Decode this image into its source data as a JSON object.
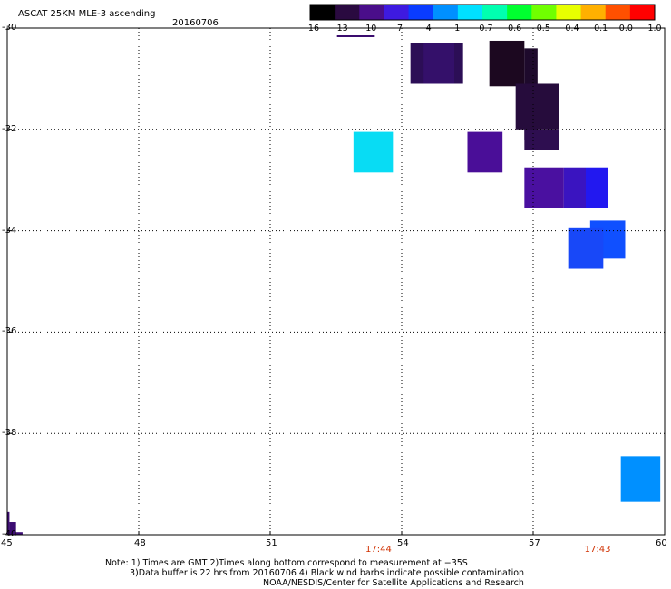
{
  "header": {
    "title": "ASCAT 25KM MLE-3 ascending",
    "date": "20160706"
  },
  "colorbar": {
    "labels": [
      "-16",
      "-13",
      "-10",
      "-7",
      "-4",
      "-1",
      "-0.7",
      "-0.6",
      "-0.5",
      "-0.4",
      "-0.1",
      "0.0",
      "1.0"
    ],
    "colors": [
      "#000000",
      "#2a0a40",
      "#4a0e8a",
      "#3e1ae0",
      "#0a3cff",
      "#0090ff",
      "#00e0ff",
      "#00ffb0",
      "#00ff30",
      "#70ff00",
      "#e8ff00",
      "#ffb000",
      "#ff5000",
      "#ff0000"
    ]
  },
  "notes": {
    "line1": "Note: 1) Times are GMT 2)Times along bottom correspond to measurement at −35S",
    "line2": "3)Data buffer is 22 hrs from 20160706 4) Black wind barbs indicate possible contamination",
    "line3": "NOAA/NESDIS/Center for Satellite Applications and Research"
  },
  "chart_data": {
    "type": "heatmap",
    "title": "ASCAT 25KM MLE-3 ascending",
    "subtitle": "20160706",
    "xlim": [
      45,
      60
    ],
    "ylim": [
      -40,
      -30
    ],
    "x_ticks": [
      45,
      48,
      51,
      54,
      57,
      60
    ],
    "y_ticks": [
      -30,
      -32,
      -34,
      -36,
      -38,
      -40
    ],
    "x_tick_labels": [
      "45",
      "48",
      "51",
      "54",
      "57",
      "60"
    ],
    "y_tick_labels": [
      "-30",
      "-32",
      "-34",
      "-36",
      "-38",
      "-40"
    ],
    "grid": true,
    "times": [
      {
        "lon": 54.0,
        "label": "17:44"
      },
      {
        "lon": 59.0,
        "label": "17:43"
      }
    ],
    "cells": [
      {
        "lon": [
          54.2,
          55.4
        ],
        "lat": [
          -30.3,
          -31.1
        ],
        "color": "#2c0e56"
      },
      {
        "lon": [
          54.5,
          55.2
        ],
        "lat": [
          -30.3,
          -31.1
        ],
        "color": "#34106a"
      },
      {
        "lon": [
          56.0,
          56.8
        ],
        "lat": [
          -30.25,
          -31.15
        ],
        "color": "#1c0820"
      },
      {
        "lon": [
          56.8,
          57.1
        ],
        "lat": [
          -30.4,
          -32.2
        ],
        "color": "#1e0a2c"
      },
      {
        "lon": [
          56.6,
          57.6
        ],
        "lat": [
          -31.1,
          -32.0
        ],
        "color": "#260c3c"
      },
      {
        "lon": [
          56.8,
          57.6
        ],
        "lat": [
          -32.0,
          -32.4
        ],
        "color": "#2e0e50"
      },
      {
        "lon": [
          52.9,
          53.8
        ],
        "lat": [
          -32.05,
          -32.85
        ],
        "color": "#08dcf4"
      },
      {
        "lon": [
          55.5,
          56.3
        ],
        "lat": [
          -32.05,
          -32.85
        ],
        "color": "#4a0e98"
      },
      {
        "lon": [
          56.8,
          57.7
        ],
        "lat": [
          -32.75,
          -33.55
        ],
        "color": "#4a10a0"
      },
      {
        "lon": [
          57.7,
          58.2
        ],
        "lat": [
          -32.75,
          -33.55
        ],
        "color": "#3a14c0"
      },
      {
        "lon": [
          58.2,
          58.7
        ],
        "lat": [
          -32.75,
          -33.55
        ],
        "color": "#2218f0"
      },
      {
        "lon": [
          58.3,
          59.1
        ],
        "lat": [
          -33.8,
          -34.55
        ],
        "color": "#1050ff"
      },
      {
        "lon": [
          57.8,
          58.6
        ],
        "lat": [
          -33.95,
          -34.75
        ],
        "color": "#1848f8"
      },
      {
        "lon": [
          59.0,
          59.9
        ],
        "lat": [
          -38.45,
          -39.35
        ],
        "color": "#0090ff"
      },
      {
        "lon": [
          45.0,
          45.05
        ],
        "lat": [
          -39.55,
          -40.0
        ],
        "color": "#3a0c6e"
      },
      {
        "lon": [
          45.05,
          45.2
        ],
        "lat": [
          -39.75,
          -40.0
        ],
        "color": "#3c0c72"
      },
      {
        "lon": [
          45.2,
          45.35
        ],
        "lat": [
          -39.95,
          -40.0
        ],
        "color": "#3e0e76"
      }
    ]
  }
}
